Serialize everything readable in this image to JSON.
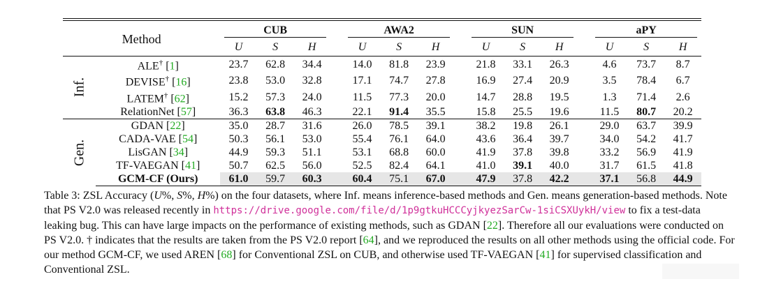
{
  "table": {
    "method_header": "Method",
    "datasets": [
      "CUB",
      "AWA2",
      "SUN",
      "aPY"
    ],
    "metrics": [
      "U",
      "S",
      "H"
    ],
    "groups": [
      {
        "label": "Inf.",
        "rows": [
          {
            "name": "ALE",
            "mark": "†",
            "cite": "1",
            "values": [
              "23.7",
              "62.8",
              "34.4",
              "14.0",
              "81.8",
              "23.9",
              "21.8",
              "33.1",
              "26.3",
              "4.6",
              "73.7",
              "8.7"
            ],
            "bold": []
          },
          {
            "name": "DEVISE",
            "mark": "†",
            "cite": "16",
            "values": [
              "23.8",
              "53.0",
              "32.8",
              "17.1",
              "74.7",
              "27.8",
              "16.9",
              "27.4",
              "20.9",
              "3.5",
              "78.4",
              "6.7"
            ],
            "bold": []
          },
          {
            "name": "LATEM",
            "mark": "†",
            "cite": "62",
            "values": [
              "15.2",
              "57.3",
              "24.0",
              "11.5",
              "77.3",
              "20.0",
              "14.7",
              "28.8",
              "19.5",
              "1.3",
              "71.4",
              "2.6"
            ],
            "bold": []
          },
          {
            "name": "RelationNet",
            "mark": "",
            "cite": "57",
            "values": [
              "36.3",
              "63.8",
              "46.3",
              "22.1",
              "91.4",
              "35.5",
              "15.8",
              "25.5",
              "19.6",
              "11.5",
              "80.7",
              "20.2"
            ],
            "bold": [
              1,
              4,
              10
            ]
          }
        ]
      },
      {
        "label": "Gen.",
        "rows": [
          {
            "name": "GDAN",
            "mark": "",
            "cite": "22",
            "values": [
              "35.0",
              "28.7",
              "31.6",
              "26.0",
              "78.5",
              "39.1",
              "38.2",
              "19.8",
              "26.1",
              "29.0",
              "63.7",
              "39.9"
            ],
            "bold": []
          },
          {
            "name": "CADA-VAE",
            "mark": "",
            "cite": "54",
            "values": [
              "50.3",
              "56.1",
              "53.0",
              "55.4",
              "76.1",
              "64.0",
              "43.6",
              "36.4",
              "39.7",
              "34.0",
              "54.2",
              "41.7"
            ],
            "bold": []
          },
          {
            "name": "LisGAN",
            "mark": "",
            "cite": "34",
            "values": [
              "44.9",
              "59.3",
              "51.1",
              "53.1",
              "68.8",
              "60.0",
              "41.9",
              "37.8",
              "39.8",
              "33.2",
              "56.9",
              "41.9"
            ],
            "bold": []
          },
          {
            "name": "TF-VAEGAN",
            "mark": "",
            "cite": "41",
            "values": [
              "50.7",
              "62.5",
              "56.0",
              "52.5",
              "82.4",
              "64.1",
              "41.0",
              "39.1",
              "40.0",
              "31.7",
              "61.5",
              "41.8"
            ],
            "bold": [
              7
            ]
          },
          {
            "name": "GCM-CF (Ours)",
            "mark": "",
            "cite": "",
            "values": [
              "61.0",
              "59.7",
              "60.3",
              "60.4",
              "75.1",
              "67.0",
              "47.9",
              "37.8",
              "42.2",
              "37.1",
              "56.8",
              "44.9"
            ],
            "bold": [
              0,
              2,
              3,
              5,
              6,
              8,
              9,
              11
            ],
            "highlight": true
          }
        ]
      }
    ]
  },
  "caption": {
    "p1": "Table 3: ZSL Accuracy (",
    "u": "U",
    "s": "S",
    "h": "H",
    "p2": " on the four datasets, where Inf. means inference-based methods and Gen. means generation-based methods. Note that PS V2.0 was released recently in ",
    "url": "https://drive.google.com/file/d/1p9gtkuHCCCyjkyezSarCw-1siCSXUykH/view",
    "p3": " to fix a test-data leaking bug. This can have large impacts on the performance of existing methods, such as GDAN [",
    "c22": "22",
    "p4": "]. Therefore all our evaluations were conducted on PS V2.0. † indicates that the results are taken from the PS V2.0 report [",
    "c64": "64",
    "p5": "], and we reproduced the results on all other methods using the official code. For our method GCM-CF, we used AREN [",
    "c68": "68",
    "p6": "] for Conventional ZSL on CUB, and otherwise used TF-VAEGAN [",
    "c41": "41",
    "p7": "] for supervised classification and Conventional ZSL."
  }
}
